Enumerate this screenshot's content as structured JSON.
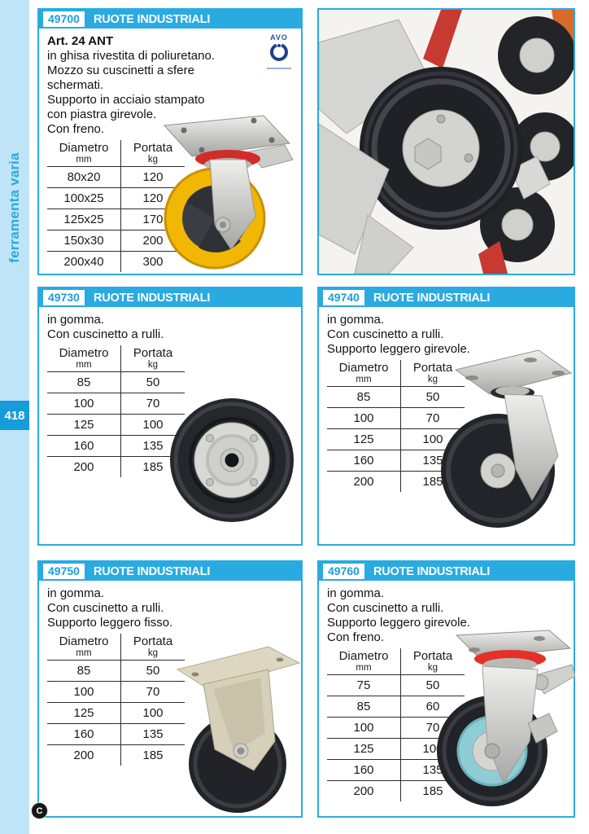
{
  "sidebar": {
    "label": "ferramenta varia",
    "page_number": "418"
  },
  "footer": {
    "copyright_mark": "C"
  },
  "category_label": "RUOTE INDUSTRIALI",
  "table_header": {
    "col1": "Diametro",
    "col1_unit": "mm",
    "col2": "Portata",
    "col2_unit": "kg"
  },
  "colors": {
    "accent": "#29abe2",
    "sidebar_bg": "#bfe4f7",
    "badge_bg": "#179cda",
    "code_text": "#1b9ddb"
  },
  "panels": {
    "p49700": {
      "code": "49700",
      "title": "Art. 24 ANT",
      "brand": "AVO",
      "description": [
        "in ghisa rivestita di poliuretano.",
        "Mozzo su cuscinetti a sfere",
        "schermati.",
        "Supporto in acciaio stampato",
        "con piastra girevole.",
        "Con freno."
      ],
      "rows": [
        [
          "80x20",
          "120"
        ],
        [
          "100x25",
          "120"
        ],
        [
          "125x25",
          "170"
        ],
        [
          "150x30",
          "200"
        ],
        [
          "200x40",
          "300"
        ]
      ]
    },
    "p49730": {
      "code": "49730",
      "description": [
        "in gomma.",
        "Con cuscinetto a rulli."
      ],
      "rows": [
        [
          "85",
          "50"
        ],
        [
          "100",
          "70"
        ],
        [
          "125",
          "100"
        ],
        [
          "160",
          "135"
        ],
        [
          "200",
          "185"
        ]
      ]
    },
    "p49740": {
      "code": "49740",
      "description": [
        "in gomma.",
        "Con cuscinetto a rulli.",
        "Supporto leggero girevole."
      ],
      "rows": [
        [
          "85",
          "50"
        ],
        [
          "100",
          "70"
        ],
        [
          "125",
          "100"
        ],
        [
          "160",
          "135"
        ],
        [
          "200",
          "185"
        ]
      ]
    },
    "p49750": {
      "code": "49750",
      "description": [
        "in gomma.",
        "Con cuscinetto a rulli.",
        "Supporto leggero fisso."
      ],
      "rows": [
        [
          "85",
          "50"
        ],
        [
          "100",
          "70"
        ],
        [
          "125",
          "100"
        ],
        [
          "160",
          "135"
        ],
        [
          "200",
          "185"
        ]
      ]
    },
    "p49760": {
      "code": "49760",
      "description": [
        "in gomma.",
        "Con cuscinetto a rulli.",
        "Supporto leggero girevole.",
        "Con freno."
      ],
      "rows": [
        [
          "75",
          "50"
        ],
        [
          "85",
          "60"
        ],
        [
          "100",
          "70"
        ],
        [
          "125",
          "100"
        ],
        [
          "160",
          "135"
        ],
        [
          "200",
          "185"
        ]
      ]
    }
  }
}
